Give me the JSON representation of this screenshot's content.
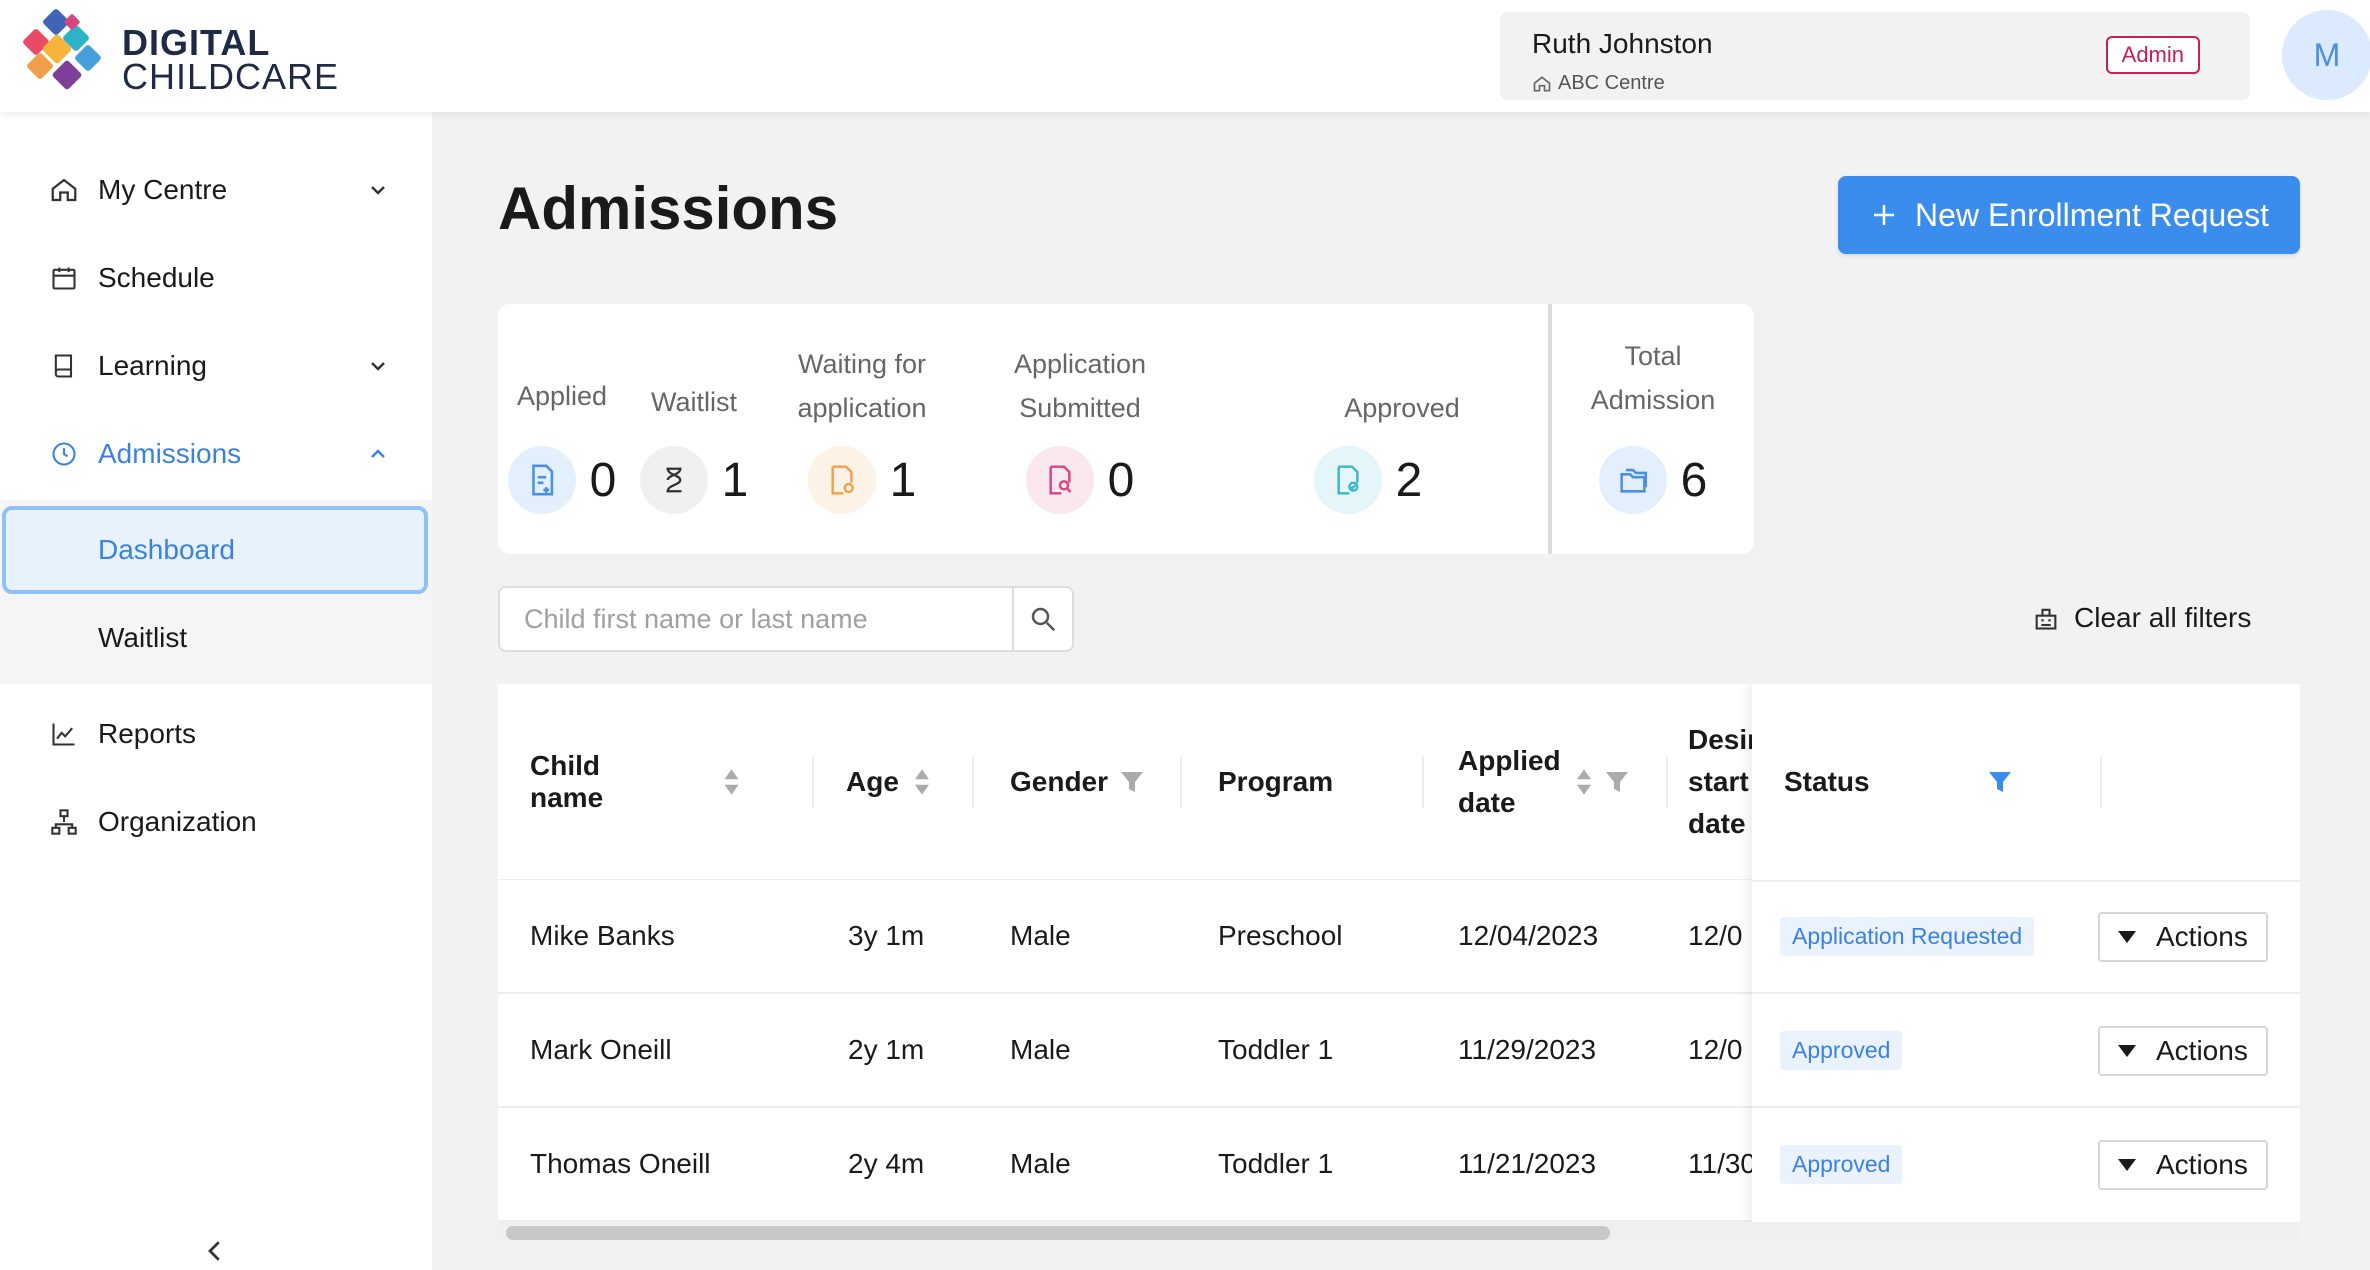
{
  "brand": {
    "line1": "DIGITAL",
    "line2": "CHILDCARE"
  },
  "user": {
    "name": "Ruth Johnston",
    "centre": "ABC Centre",
    "role": "Admin",
    "avatar_initial": "M"
  },
  "sidebar": {
    "items": [
      {
        "label": "My Centre",
        "icon": "home-icon",
        "has_chevron": true
      },
      {
        "label": "Schedule",
        "icon": "calendar-icon",
        "has_chevron": false
      },
      {
        "label": "Learning",
        "icon": "book-icon",
        "has_chevron": true
      },
      {
        "label": "Admissions",
        "icon": "admissions-icon",
        "has_chevron": true,
        "active": true
      },
      {
        "label": "Reports",
        "icon": "chart-icon",
        "has_chevron": false
      },
      {
        "label": "Organization",
        "icon": "org-icon",
        "has_chevron": false
      }
    ],
    "subitems": [
      {
        "label": "Dashboard",
        "selected": true
      },
      {
        "label": "Waitlist",
        "selected": false
      }
    ]
  },
  "page": {
    "title": "Admissions",
    "new_button": "New Enrollment Request"
  },
  "stats": [
    {
      "label_lines": [
        "Applied"
      ],
      "value": "0",
      "icon": "document-plus-icon",
      "color": "#4a90e2",
      "bg": "#e3effc"
    },
    {
      "label_lines": [
        "Waitlist"
      ],
      "value": "1",
      "icon": "hourglass-icon",
      "color": "#333333",
      "bg": "#f0f0f0"
    },
    {
      "label_lines": [
        "Waiting for",
        "application"
      ],
      "value": "1",
      "icon": "document-refresh-icon",
      "color": "#f0a04b",
      "bg": "#fdf2e6"
    },
    {
      "label_lines": [
        "Application",
        "Submitted"
      ],
      "value": "0",
      "icon": "document-search-icon",
      "color": "#d6457f",
      "bg": "#fbe7ef"
    },
    {
      "label_lines": [
        "Approved"
      ],
      "value": "2",
      "icon": "document-check-icon",
      "color": "#3cb5c8",
      "bg": "#e4f6f9"
    },
    {
      "label_lines": [
        "Total",
        "Admission"
      ],
      "value": "6",
      "icon": "folders-icon",
      "color": "#4a90e2",
      "bg": "#e3effc"
    }
  ],
  "search": {
    "placeholder": "Child first name or last name"
  },
  "clear_filters": "Clear all filters",
  "table": {
    "columns": [
      {
        "label": "Child name",
        "sortable": true,
        "filterable": false
      },
      {
        "label": "Age",
        "sortable": true,
        "filterable": false
      },
      {
        "label": "Gender",
        "sortable": false,
        "filterable": true
      },
      {
        "label": "Program",
        "sortable": false,
        "filterable": false
      },
      {
        "label_lines": [
          "Applied",
          "date"
        ],
        "sortable": true,
        "filterable": true
      },
      {
        "label_lines": [
          "Desired",
          "start",
          "date"
        ],
        "sortable": false,
        "filterable": false
      },
      {
        "label": "Status",
        "sortable": false,
        "filterable": true,
        "filter_active": true
      }
    ],
    "rows": [
      {
        "name": "Mike Banks",
        "age": "3y 1m",
        "gender": "Male",
        "program": "Preschool",
        "applied": "12/04/2023",
        "desired": "12/0",
        "status": "Application Requested"
      },
      {
        "name": "Mark Oneill",
        "age": "2y 1m",
        "gender": "Male",
        "program": "Toddler 1",
        "applied": "11/29/2023",
        "desired": "12/0",
        "status": "Approved"
      },
      {
        "name": "Thomas Oneill",
        "age": "2y 4m",
        "gender": "Male",
        "program": "Toddler 1",
        "applied": "11/21/2023",
        "desired": "11/30",
        "status": "Approved"
      }
    ],
    "actions_label": "Actions"
  },
  "colors": {
    "accent": "#3b8ded",
    "admin_badge": "#c4205a",
    "status_badge_bg": "#e9f2fd",
    "status_badge_text": "#3b82e0"
  }
}
